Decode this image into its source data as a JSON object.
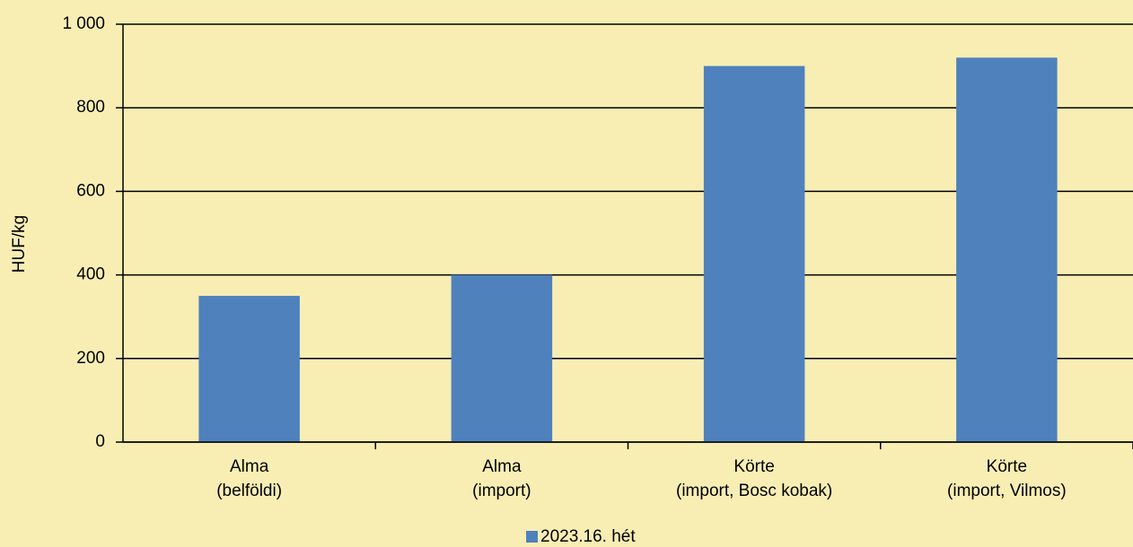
{
  "chart_data": {
    "type": "bar",
    "y_label": "HUF/kg",
    "categories": [
      [
        "Alma",
        "(belföldi)"
      ],
      [
        "Alma",
        "(import)"
      ],
      [
        "Körte",
        "(import, Bosc kobak)"
      ],
      [
        "Körte",
        "(import, Vilmos)"
      ]
    ],
    "series": [
      {
        "name": "2023.16. hét",
        "color": "#4f81bd",
        "values": [
          350,
          400,
          900,
          920
        ]
      }
    ],
    "ylim": [
      0,
      1000
    ],
    "yticks": [
      0,
      200,
      400,
      600,
      800,
      {
        "value": 1000,
        "label": "1 000"
      }
    ],
    "grid": true,
    "legend": "bottom"
  }
}
